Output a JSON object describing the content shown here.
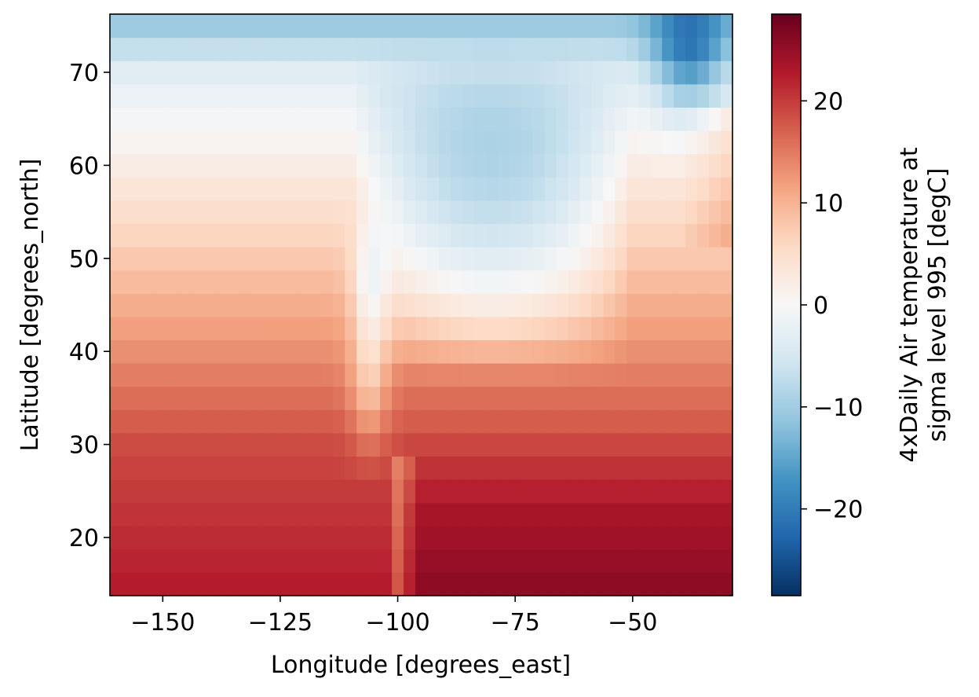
{
  "chart_data": {
    "type": "heatmap",
    "title": "",
    "xlabel": "Longitude [degrees_east]",
    "ylabel": "Latitude [degrees_north]",
    "colorbar_label_lines": [
      "4xDaily Air temperature at",
      "sigma level 995 [degC]"
    ],
    "colormap": "RdBu_r",
    "vmin": -28.5,
    "vmax": 28.5,
    "xlim": [
      -161.25,
      -28.75
    ],
    "ylim": [
      13.75,
      76.25
    ],
    "x_step": 2.5,
    "y_step": 2.5,
    "xticks": [
      {
        "value": -150,
        "label": "−150"
      },
      {
        "value": -125,
        "label": "−125"
      },
      {
        "value": -100,
        "label": "−100"
      },
      {
        "value": -75,
        "label": "−75"
      },
      {
        "value": -50,
        "label": "−50"
      }
    ],
    "yticks": [
      {
        "value": 20,
        "label": "20"
      },
      {
        "value": 30,
        "label": "30"
      },
      {
        "value": 40,
        "label": "40"
      },
      {
        "value": 50,
        "label": "50"
      },
      {
        "value": 60,
        "label": "60"
      },
      {
        "value": 70,
        "label": "70"
      }
    ],
    "colorbar_ticks": [
      {
        "value": 20,
        "label": "20"
      },
      {
        "value": 10,
        "label": "10"
      },
      {
        "value": 0,
        "label": "0"
      },
      {
        "value": -10,
        "label": "−10"
      },
      {
        "value": -20,
        "label": "−20"
      }
    ],
    "field_description": "Air temperature grid on 2.5 degree lattice: lon -160..-30, lat 15..75; values in degC estimated from colors",
    "x": [
      -160,
      -157.5,
      -155,
      -152.5,
      -150,
      -147.5,
      -145,
      -142.5,
      -140,
      -137.5,
      -135,
      -132.5,
      -130,
      -127.5,
      -125,
      -122.5,
      -120,
      -117.5,
      -115,
      -112.5,
      -110,
      -107.5,
      -105,
      -102.5,
      -100,
      -97.5,
      -95,
      -92.5,
      -90,
      -87.5,
      -85,
      -82.5,
      -80,
      -77.5,
      -75,
      -72.5,
      -70,
      -67.5,
      -65,
      -62.5,
      -60,
      -57.5,
      -55,
      -52.5,
      -50,
      -47.5,
      -45,
      -42.5,
      -40,
      -37.5,
      -35,
      -32.5,
      -30
    ],
    "y": [
      15,
      17.5,
      20,
      22.5,
      25,
      27.5,
      30,
      32.5,
      35,
      37.5,
      40,
      42.5,
      45,
      47.5,
      50,
      52.5,
      55,
      57.5,
      60,
      62.5,
      65,
      67.5,
      70,
      72.5,
      75
    ]
  }
}
